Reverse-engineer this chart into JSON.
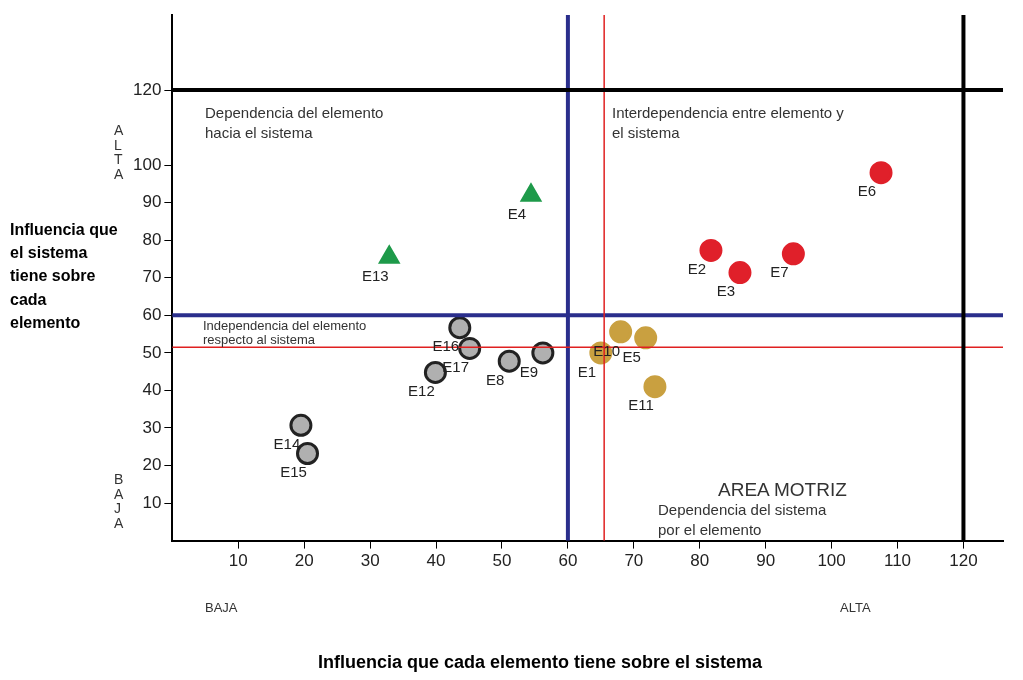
{
  "chart_data": {
    "type": "scatter",
    "xlabel": "Influencia que cada elemento tiene sobre el sistema",
    "ylabel": "Influencia que el sistema tiene sobre cada elemento",
    "xlim": [
      0,
      126
    ],
    "ylim": [
      0,
      140
    ],
    "xticks": [
      10,
      20,
      30,
      40,
      50,
      60,
      70,
      80,
      90,
      100,
      110,
      120
    ],
    "yticks": [
      10,
      20,
      30,
      40,
      50,
      60,
      70,
      80,
      90,
      100,
      120
    ],
    "grid": false,
    "legend": false,
    "series": [
      {
        "color": "#1e9a4a",
        "marker": "triangle",
        "x": [
          54.4,
          32.9
        ],
        "values": [
          92,
          75.5
        ]
      },
      {
        "color": "#e0202a",
        "marker": "circle",
        "x": [
          81.7,
          86.1,
          107.5,
          94.2
        ],
        "values": [
          77.3,
          71.4,
          98,
          76.4
        ]
      },
      {
        "color": "#c9a040",
        "marker": "circle",
        "x": [
          65,
          71.8,
          68,
          73.2
        ],
        "values": [
          50,
          54,
          55.6,
          41
        ]
      },
      {
        "color": "#222222",
        "marker": "circle",
        "x": [
          51.1,
          56.2,
          39.9,
          19.5,
          20.5,
          43.6,
          45.1
        ],
        "values": [
          47.8,
          50,
          44.8,
          30.7,
          23.2,
          56.7,
          51.2
        ]
      }
    ],
    "ref_lines": [
      {
        "axis": "x",
        "value": 60,
        "color": "#2a2e8c"
      },
      {
        "axis": "y",
        "value": 60,
        "color": "#2a2e8c"
      },
      {
        "axis": "x",
        "value": 65.5,
        "color": "#e02020"
      },
      {
        "axis": "y",
        "value": 51.5,
        "color": "#e02020"
      },
      {
        "axis": "x",
        "value": 120,
        "color": "#000000"
      },
      {
        "axis": "y",
        "value": 120,
        "color": "#000000"
      }
    ],
    "annotations": [
      "Dependencia del elemento hacia el sistema",
      "Interdependencia entre elemento y el sistema",
      "Independencia del elemento respecto al sistema",
      "AREA MOTRIZ",
      "Dependencia del sistema por el elemento",
      "ALTA",
      "BAJA",
      "BAJA",
      "ALTA",
      {
        "text": "E1",
        "x": 65,
        "y": 50
      },
      {
        "text": "E2",
        "x": 81.7,
        "y": 77.3
      },
      {
        "text": "E3",
        "x": 86.1,
        "y": 71.4
      },
      {
        "text": "E4",
        "x": 54.4,
        "y": 92
      },
      {
        "text": "E5",
        "x": 71.8,
        "y": 54
      },
      {
        "text": "E6",
        "x": 107.5,
        "y": 98
      },
      {
        "text": "E7",
        "x": 94.2,
        "y": 76.4
      },
      {
        "text": "E8",
        "x": 51.1,
        "y": 47.8
      },
      {
        "text": "E9",
        "x": 56.2,
        "y": 50
      },
      {
        "text": "E10",
        "x": 68,
        "y": 55.6
      },
      {
        "text": "E11",
        "x": 73.2,
        "y": 41
      },
      {
        "text": "E12",
        "x": 39.9,
        "y": 44.8
      },
      {
        "text": "E13",
        "x": 32.9,
        "y": 75.5
      },
      {
        "text": "E14",
        "x": 19.5,
        "y": 30.7
      },
      {
        "text": "E15",
        "x": 20.5,
        "y": 23.2
      },
      {
        "text": "E16",
        "x": 43.6,
        "y": 56.7
      },
      {
        "text": "E17",
        "x": 45.1,
        "y": 51.2
      }
    ]
  }
}
